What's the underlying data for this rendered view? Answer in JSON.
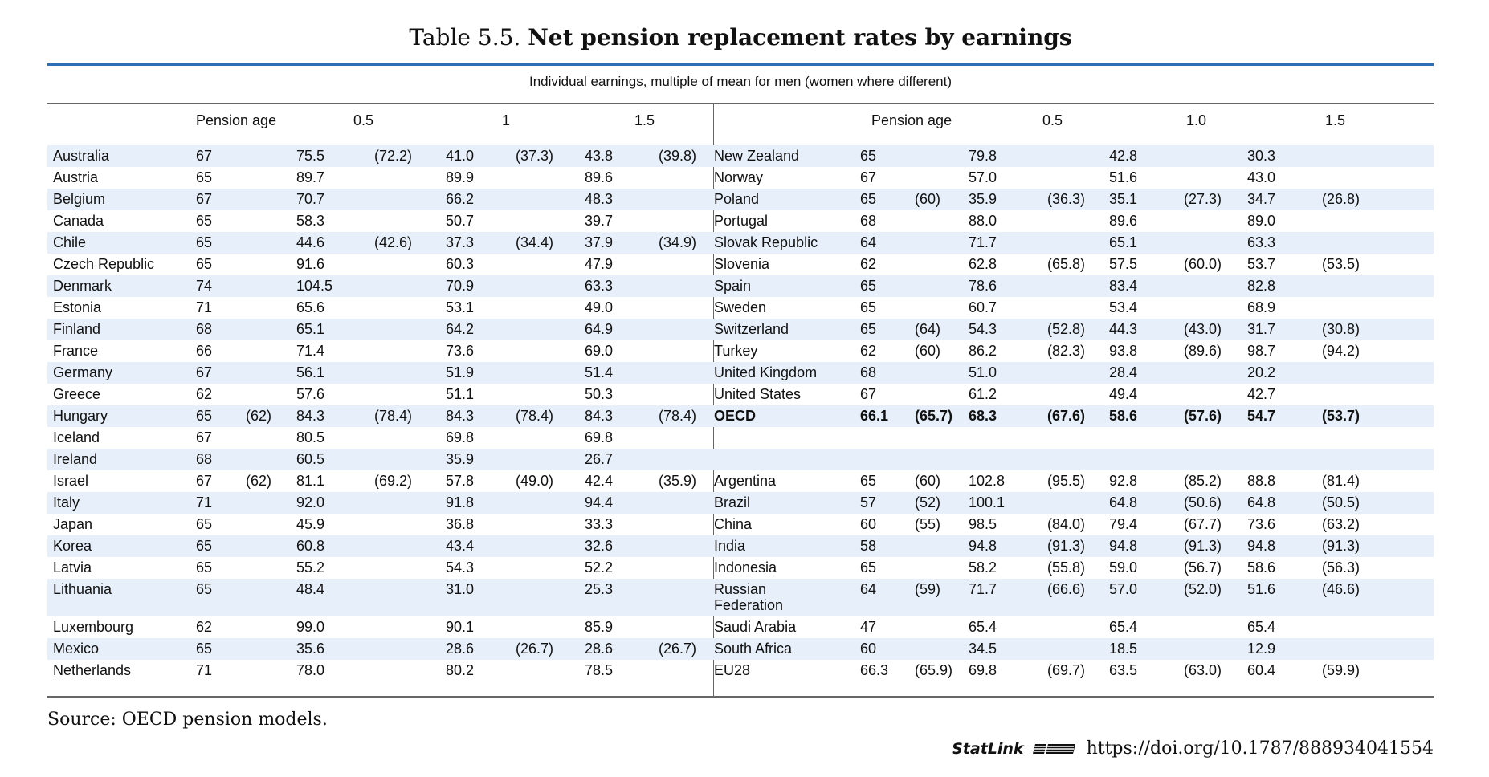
{
  "title": {
    "prefix": "Table 5.5. ",
    "bold": "Net pension replacement rates by earnings"
  },
  "subheading": "Individual earnings, multiple of mean for men (women where different)",
  "columns": {
    "pension_age": "Pension age",
    "c05": "0.5",
    "c1": "1",
    "c15": "1.5",
    "r05": "0.5",
    "r10": "1.0",
    "r15": "1.5"
  },
  "rows": [
    {
      "l": [
        "Australia",
        "67",
        "",
        "75.5",
        "(72.2)",
        "41.0",
        "(37.3)",
        "43.8",
        "(39.8)"
      ],
      "r": [
        "New Zealand",
        "65",
        "",
        "79.8",
        "",
        "42.8",
        "",
        "30.3",
        ""
      ]
    },
    {
      "l": [
        "Austria",
        "65",
        "",
        "89.7",
        "",
        "89.9",
        "",
        "89.6",
        ""
      ],
      "r": [
        "Norway",
        "67",
        "",
        "57.0",
        "",
        "51.6",
        "",
        "43.0",
        ""
      ]
    },
    {
      "l": [
        "Belgium",
        "67",
        "",
        "70.7",
        "",
        "66.2",
        "",
        "48.3",
        ""
      ],
      "r": [
        "Poland",
        "65",
        "(60)",
        "35.9",
        "(36.3)",
        "35.1",
        "(27.3)",
        "34.7",
        "(26.8)"
      ]
    },
    {
      "l": [
        "Canada",
        "65",
        "",
        "58.3",
        "",
        "50.7",
        "",
        "39.7",
        ""
      ],
      "r": [
        "Portugal",
        "68",
        "",
        "88.0",
        "",
        "89.6",
        "",
        "89.0",
        ""
      ]
    },
    {
      "l": [
        "Chile",
        "65",
        "",
        "44.6",
        "(42.6)",
        "37.3",
        "(34.4)",
        "37.9",
        "(34.9)"
      ],
      "r": [
        "Slovak Republic",
        "64",
        "",
        "71.7",
        "",
        "65.1",
        "",
        "63.3",
        ""
      ]
    },
    {
      "l": [
        "Czech Republic",
        "65",
        "",
        "91.6",
        "",
        "60.3",
        "",
        "47.9",
        ""
      ],
      "r": [
        "Slovenia",
        "62",
        "",
        "62.8",
        "(65.8)",
        "57.5",
        "(60.0)",
        "53.7",
        "(53.5)"
      ]
    },
    {
      "l": [
        "Denmark",
        "74",
        "",
        "104.5",
        "",
        "70.9",
        "",
        "63.3",
        ""
      ],
      "r": [
        "Spain",
        "65",
        "",
        "78.6",
        "",
        "83.4",
        "",
        "82.8",
        ""
      ]
    },
    {
      "l": [
        "Estonia",
        "71",
        "",
        "65.6",
        "",
        "53.1",
        "",
        "49.0",
        ""
      ],
      "r": [
        "Sweden",
        "65",
        "",
        "60.7",
        "",
        "53.4",
        "",
        "68.9",
        ""
      ]
    },
    {
      "l": [
        "Finland",
        "68",
        "",
        "65.1",
        "",
        "64.2",
        "",
        "64.9",
        ""
      ],
      "r": [
        "Switzerland",
        "65",
        "(64)",
        "54.3",
        "(52.8)",
        "44.3",
        "(43.0)",
        "31.7",
        "(30.8)"
      ]
    },
    {
      "l": [
        "France",
        "66",
        "",
        "71.4",
        "",
        "73.6",
        "",
        "69.0",
        ""
      ],
      "r": [
        "Turkey",
        "62",
        "(60)",
        "86.2",
        "(82.3)",
        "93.8",
        "(89.6)",
        "98.7",
        "(94.2)"
      ]
    },
    {
      "l": [
        "Germany",
        "67",
        "",
        "56.1",
        "",
        "51.9",
        "",
        "51.4",
        ""
      ],
      "r": [
        "United Kingdom",
        "68",
        "",
        "51.0",
        "",
        "28.4",
        "",
        "20.2",
        ""
      ]
    },
    {
      "l": [
        "Greece",
        "62",
        "",
        "57.6",
        "",
        "51.1",
        "",
        "50.3",
        ""
      ],
      "r": [
        "United States",
        "67",
        "",
        "61.2",
        "",
        "49.4",
        "",
        "42.7",
        ""
      ]
    },
    {
      "l": [
        "Hungary",
        "65",
        "(62)",
        "84.3",
        "(78.4)",
        "84.3",
        "(78.4)",
        "84.3",
        "(78.4)"
      ],
      "r": [
        "OECD",
        "66.1",
        "(65.7)",
        "68.3",
        "(67.6)",
        "58.6",
        "(57.6)",
        "54.7",
        "(53.7)"
      ],
      "rbold": true
    },
    {
      "l": [
        "Iceland",
        "67",
        "",
        "80.5",
        "",
        "69.8",
        "",
        "69.8",
        ""
      ],
      "r": [
        "",
        "",
        "",
        "",
        "",
        "",
        "",
        "",
        ""
      ]
    },
    {
      "l": [
        "Ireland",
        "68",
        "",
        "60.5",
        "",
        "35.9",
        "",
        "26.7",
        ""
      ],
      "r": [
        "",
        "",
        "",
        "",
        "",
        "",
        "",
        "",
        ""
      ]
    },
    {
      "l": [
        "Israel",
        "67",
        "(62)",
        "81.1",
        "(69.2)",
        "57.8",
        "(49.0)",
        "42.4",
        "(35.9)"
      ],
      "r": [
        "Argentina",
        "65",
        "(60)",
        "102.8",
        "(95.5)",
        "92.8",
        "(85.2)",
        "88.8",
        "(81.4)"
      ]
    },
    {
      "l": [
        "Italy",
        "71",
        "",
        "92.0",
        "",
        "91.8",
        "",
        "94.4",
        ""
      ],
      "r": [
        "Brazil",
        "57",
        "(52)",
        "100.1",
        "",
        "64.8",
        "(50.6)",
        "64.8",
        "(50.5)"
      ]
    },
    {
      "l": [
        "Japan",
        "65",
        "",
        "45.9",
        "",
        "36.8",
        "",
        "33.3",
        ""
      ],
      "r": [
        "China",
        "60",
        "(55)",
        "98.5",
        "(84.0)",
        "79.4",
        "(67.7)",
        "73.6",
        "(63.2)"
      ]
    },
    {
      "l": [
        "Korea",
        "65",
        "",
        "60.8",
        "",
        "43.4",
        "",
        "32.6",
        ""
      ],
      "r": [
        "India",
        "58",
        "",
        "94.8",
        "(91.3)",
        "94.8",
        "(91.3)",
        "94.8",
        "(91.3)"
      ]
    },
    {
      "l": [
        "Latvia",
        "65",
        "",
        "55.2",
        "",
        "54.3",
        "",
        "52.2",
        ""
      ],
      "r": [
        "Indonesia",
        "65",
        "",
        "58.2",
        "(55.8)",
        "59.0",
        "(56.7)",
        "58.6",
        "(56.3)"
      ]
    },
    {
      "l": [
        "Lithuania",
        "65",
        "",
        "48.4",
        "",
        "31.0",
        "",
        "25.3",
        ""
      ],
      "r": [
        "Russian Federation",
        "64",
        "(59)",
        "71.7",
        "(66.6)",
        "57.0",
        "(52.0)",
        "51.6",
        "(46.6)"
      ],
      "tall": true
    },
    {
      "l": [
        "Luxembourg",
        "62",
        "",
        "99.0",
        "",
        "90.1",
        "",
        "85.9",
        ""
      ],
      "r": [
        "Saudi Arabia",
        "47",
        "",
        "65.4",
        "",
        "65.4",
        "",
        "65.4",
        ""
      ]
    },
    {
      "l": [
        "Mexico",
        "65",
        "",
        "35.6",
        "",
        "28.6",
        "(26.7)",
        "28.6",
        "(26.7)"
      ],
      "r": [
        "South Africa",
        "60",
        "",
        "34.5",
        "",
        "18.5",
        "",
        "12.9",
        ""
      ]
    },
    {
      "l": [
        "Netherlands",
        "71",
        "",
        "78.0",
        "",
        "80.2",
        "",
        "78.5",
        ""
      ],
      "r": [
        "EU28",
        "66.3",
        "(65.9)",
        "69.8",
        "(69.7)",
        "63.5",
        "(63.0)",
        "60.4",
        "(59.9)"
      ]
    }
  ],
  "source": "Source: OECD pension models.",
  "statlink": {
    "logo": "StatLink",
    "url": "https://doi.org/10.1787/888934041554"
  }
}
